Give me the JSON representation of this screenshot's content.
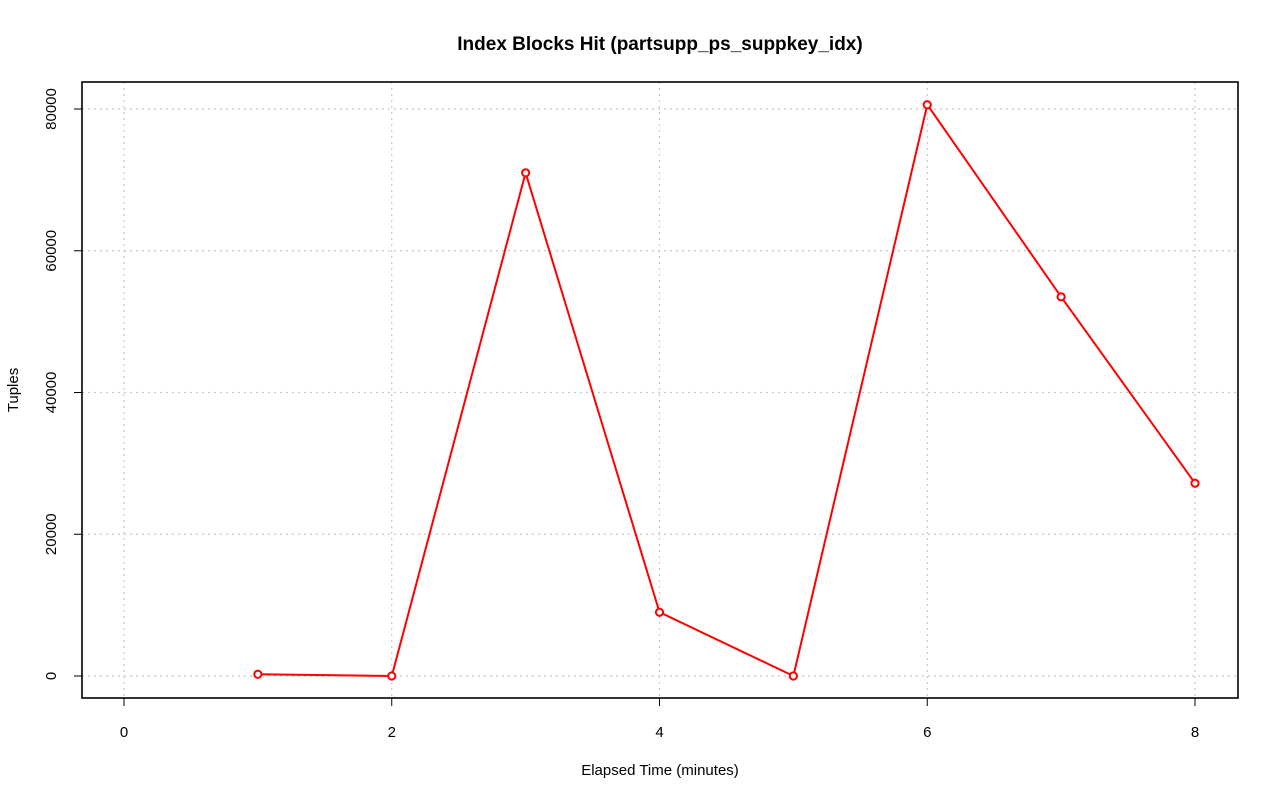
{
  "chart_data": {
    "type": "line",
    "title": "Index Blocks Hit (partsupp_ps_suppkey_idx)",
    "xlabel": "Elapsed Time (minutes)",
    "ylabel": "Tuples",
    "xlim": [
      0,
      8
    ],
    "ylim": [
      0,
      80000
    ],
    "x_ticks": [
      0,
      2,
      4,
      6,
      8
    ],
    "y_ticks": [
      0,
      20000,
      40000,
      60000,
      80000
    ],
    "x_tick_labels": [
      "0",
      "2",
      "4",
      "6",
      "8"
    ],
    "y_tick_labels": [
      "0",
      "20000",
      "40000",
      "60000",
      "80000"
    ],
    "grid": true,
    "series": [
      {
        "color": "#ff0000",
        "marker": "open-circle",
        "x": [
          1,
          2,
          3,
          4,
          5,
          6,
          7,
          8
        ],
        "values": [
          250,
          0,
          71000,
          9000,
          0,
          80600,
          53500,
          27200
        ]
      }
    ]
  }
}
